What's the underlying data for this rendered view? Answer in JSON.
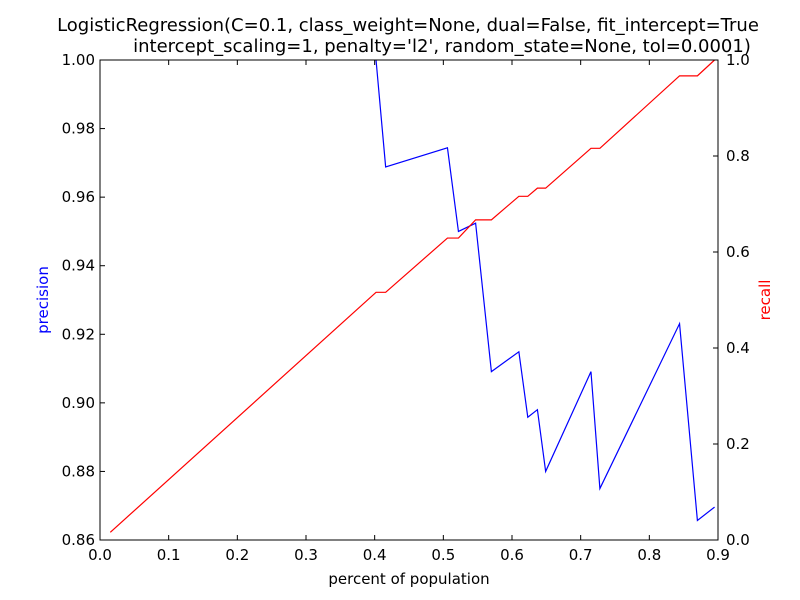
{
  "chart_data": {
    "type": "line",
    "title_lines": [
      "LogisticRegression(C=0.1, class_weight=None, dual=False, fit_intercept=True",
      "intercept_scaling=1, penalty='l2', random_state=None, tol=0.0001)"
    ],
    "xlabel": "percent of population",
    "ylabel_left": "precision",
    "ylabel_right": "recall",
    "xlim": [
      0.0,
      0.9
    ],
    "ylim_left": [
      0.86,
      1.0
    ],
    "ylim_right": [
      0.0,
      1.0
    ],
    "x_ticks": [
      "0.0",
      "0.1",
      "0.2",
      "0.3",
      "0.4",
      "0.5",
      "0.6",
      "0.7",
      "0.8",
      "0.9"
    ],
    "y_left_ticks": [
      "0.86",
      "0.88",
      "0.90",
      "0.92",
      "0.94",
      "0.96",
      "0.98",
      "1.00"
    ],
    "y_right_ticks": [
      "0.0",
      "0.2",
      "0.4",
      "0.6",
      "0.8",
      "1.0"
    ],
    "grid": false,
    "series": [
      {
        "name": "precision",
        "axis": "left",
        "color": "#0000ff",
        "points": [
          [
            0.402,
            1.0
          ],
          [
            0.416,
            0.9688
          ],
          [
            0.506,
            0.9744
          ],
          [
            0.522,
            0.95
          ],
          [
            0.547,
            0.9524
          ],
          [
            0.57,
            0.9091
          ],
          [
            0.61,
            0.9149
          ],
          [
            0.623,
            0.8958
          ],
          [
            0.637,
            0.898
          ],
          [
            0.649,
            0.88
          ],
          [
            0.715,
            0.9091
          ],
          [
            0.728,
            0.875
          ],
          [
            0.844,
            0.9231
          ],
          [
            0.87,
            0.8657
          ],
          [
            0.895,
            0.8696
          ]
        ]
      },
      {
        "name": "recall",
        "axis": "right",
        "color": "#ff0000",
        "points": [
          [
            0.015,
            0.016
          ],
          [
            0.402,
            0.516
          ],
          [
            0.416,
            0.516
          ],
          [
            0.506,
            0.629
          ],
          [
            0.522,
            0.629
          ],
          [
            0.547,
            0.667
          ],
          [
            0.57,
            0.667
          ],
          [
            0.61,
            0.716
          ],
          [
            0.623,
            0.716
          ],
          [
            0.637,
            0.733
          ],
          [
            0.649,
            0.733
          ],
          [
            0.715,
            0.816
          ],
          [
            0.728,
            0.816
          ],
          [
            0.844,
            0.967
          ],
          [
            0.87,
            0.967
          ],
          [
            0.895,
            1.0
          ]
        ]
      }
    ]
  }
}
